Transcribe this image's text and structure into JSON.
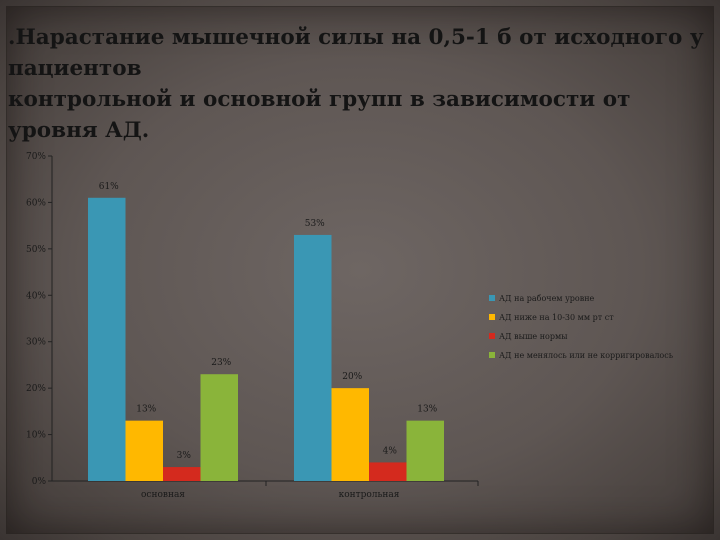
{
  "slide": {
    "title": ".Нарастание мышечной силы на 0,5-1 б от исходного у пациентов\nконтрольной и основной групп в зависимости от уровня АД."
  },
  "colors": {
    "series": [
      "#3a97b4",
      "#ffb800",
      "#d42a1e",
      "#8ab43a"
    ],
    "axis": "#222222"
  },
  "chart_data": {
    "type": "bar",
    "title": "",
    "xlabel": "",
    "ylabel": "",
    "categories": [
      "основная",
      "контрольная"
    ],
    "series": [
      {
        "name": "АД на рабочем уровне",
        "values": [
          61,
          53
        ],
        "labels": [
          "61%",
          "53%"
        ]
      },
      {
        "name": "АД ниже на 10-30 мм рт ст",
        "values": [
          13,
          20
        ],
        "labels": [
          "13%",
          "20%"
        ]
      },
      {
        "name": "АД выше нормы",
        "values": [
          3,
          4
        ],
        "labels": [
          "3%",
          "4%"
        ]
      },
      {
        "name": "АД не менялось или не корригировалось",
        "values": [
          23,
          13
        ],
        "labels": [
          "23%",
          "13%"
        ]
      }
    ],
    "ylim": [
      0,
      70
    ],
    "yticks": [
      0,
      10,
      20,
      30,
      40,
      50,
      60,
      70
    ],
    "ytick_labels": [
      "0%",
      "10%",
      "20%",
      "30%",
      "40%",
      "50%",
      "60%",
      "70%"
    ],
    "grid": false,
    "legend_position": "right"
  }
}
